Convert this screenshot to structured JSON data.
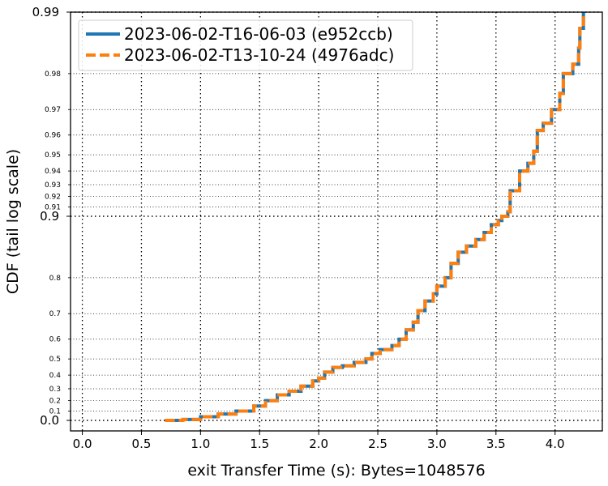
{
  "chart_data": {
    "type": "line",
    "xlabel": "exit Transfer Time (s): Bytes=1048576",
    "ylabel": "CDF (tail log scale)",
    "xlim": [
      -0.1,
      4.4
    ],
    "x_ticks": [
      "0.0",
      "0.5",
      "1.0",
      "1.5",
      "2.0",
      "2.5",
      "3.0",
      "3.5",
      "4.0"
    ],
    "x_tick_values": [
      0.0,
      0.5,
      1.0,
      1.5,
      2.0,
      2.5,
      3.0,
      3.5,
      4.0
    ],
    "y_scale": "tail log",
    "y_ticks_major": [
      "0.0",
      "0.9",
      "0.99"
    ],
    "y_ticks_minor": [
      "0.1",
      "0.2",
      "0.3",
      "0.4",
      "0.5",
      "0.6",
      "0.7",
      "0.8",
      "0.91",
      "0.92",
      "0.93",
      "0.94",
      "0.95",
      "0.96",
      "0.97",
      "0.98"
    ],
    "grid": true,
    "legend_position": "top-left",
    "colors": {
      "series_1": "#1f77b4",
      "series_2": "#ff7f0e"
    },
    "series": [
      {
        "name": "2023-06-02-T16-06-03 (e952ccb)",
        "style": "solid",
        "x": [
          0.7,
          0.85,
          1.0,
          1.15,
          1.3,
          1.45,
          1.55,
          1.65,
          1.75,
          1.85,
          1.95,
          2.0,
          2.05,
          2.12,
          2.2,
          2.3,
          2.4,
          2.45,
          2.52,
          2.62,
          2.68,
          2.74,
          2.8,
          2.84,
          2.9,
          2.97,
          3.0,
          3.07,
          3.12,
          3.18,
          3.25,
          3.33,
          3.4,
          3.46,
          3.52,
          3.55,
          3.6,
          3.62,
          3.7,
          3.77,
          3.82,
          3.85,
          3.9,
          3.97,
          4.04,
          4.07,
          4.15,
          4.2,
          4.21,
          4.24
        ],
        "y": [
          0.0,
          0.01,
          0.04,
          0.07,
          0.1,
          0.15,
          0.2,
          0.25,
          0.28,
          0.32,
          0.36,
          0.38,
          0.42,
          0.45,
          0.46,
          0.48,
          0.5,
          0.53,
          0.55,
          0.57,
          0.6,
          0.64,
          0.67,
          0.71,
          0.74,
          0.76,
          0.78,
          0.8,
          0.83,
          0.85,
          0.86,
          0.87,
          0.88,
          0.89,
          0.895,
          0.9,
          0.905,
          0.925,
          0.94,
          0.945,
          0.952,
          0.962,
          0.965,
          0.97,
          0.975,
          0.98,
          0.982,
          0.985,
          0.988,
          0.99
        ]
      },
      {
        "name": "2023-06-02-T13-10-24 (4976adc)",
        "style": "dashed",
        "x": [
          0.7,
          0.85,
          1.0,
          1.15,
          1.3,
          1.45,
          1.55,
          1.65,
          1.75,
          1.85,
          1.95,
          2.0,
          2.05,
          2.12,
          2.2,
          2.3,
          2.4,
          2.45,
          2.52,
          2.62,
          2.68,
          2.74,
          2.8,
          2.84,
          2.9,
          2.97,
          3.0,
          3.07,
          3.12,
          3.18,
          3.25,
          3.33,
          3.4,
          3.46,
          3.52,
          3.55,
          3.6,
          3.62,
          3.7,
          3.77,
          3.82,
          3.85,
          3.9,
          3.97,
          4.04,
          4.07,
          4.15,
          4.2,
          4.21,
          4.24
        ],
        "y": [
          0.0,
          0.01,
          0.04,
          0.07,
          0.1,
          0.15,
          0.2,
          0.25,
          0.28,
          0.32,
          0.36,
          0.38,
          0.42,
          0.45,
          0.46,
          0.48,
          0.5,
          0.53,
          0.55,
          0.57,
          0.6,
          0.64,
          0.67,
          0.71,
          0.74,
          0.76,
          0.78,
          0.8,
          0.83,
          0.85,
          0.86,
          0.87,
          0.88,
          0.89,
          0.895,
          0.9,
          0.905,
          0.925,
          0.94,
          0.945,
          0.952,
          0.962,
          0.965,
          0.97,
          0.975,
          0.98,
          0.982,
          0.985,
          0.988,
          0.99
        ]
      }
    ]
  }
}
